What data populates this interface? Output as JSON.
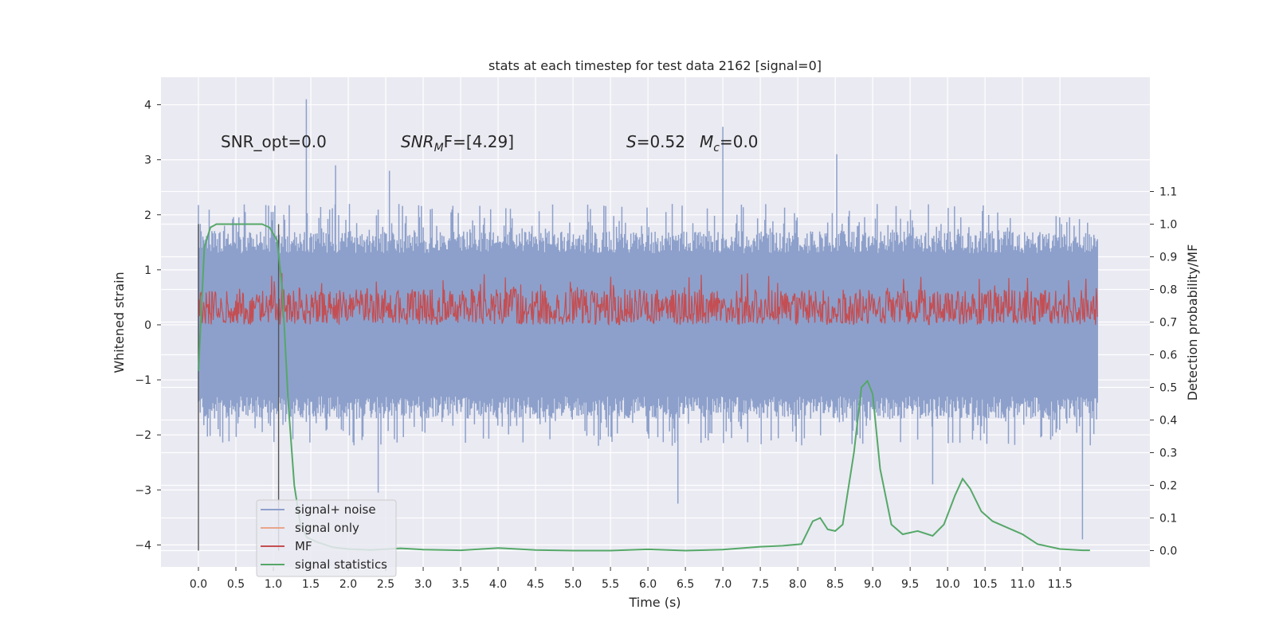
{
  "chart_data": {
    "type": "line",
    "title": "stats at each timestep for test data 2162 [signal=0]",
    "xlabel": "Time (s)",
    "ylabel": "Whitened strain",
    "y2label": "Detection probability/MF",
    "xlim": [
      -0.5,
      12.7
    ],
    "ylim": [
      -4.4,
      4.5
    ],
    "y2lim": [
      -0.05,
      1.45
    ],
    "x_ticks": [
      0.0,
      0.5,
      1.0,
      1.5,
      2.0,
      2.5,
      3.0,
      3.5,
      4.0,
      4.5,
      5.0,
      5.5,
      6.0,
      6.5,
      7.0,
      7.5,
      8.0,
      8.5,
      9.0,
      9.5,
      10.0,
      10.5,
      11.0,
      11.5
    ],
    "x_tick_labels": [
      "0.0",
      "0.5",
      "1.0",
      "1.5",
      "2.0",
      "2.5",
      "3.0",
      "3.5",
      "4.0",
      "4.5",
      "5.0",
      "5.5",
      "6.0",
      "6.5",
      "7.0",
      "7.5",
      "8.0",
      "8.5",
      "9.0",
      "9.5",
      "10.0",
      "10.5",
      "11.0",
      "11.5"
    ],
    "y_ticks": [
      -4,
      -3,
      -2,
      -1,
      0,
      1,
      2,
      3,
      4
    ],
    "y_tick_labels": [
      "−4",
      "−3",
      "−2",
      "−1",
      "0",
      "1",
      "2",
      "3",
      "4"
    ],
    "y2_ticks": [
      0.0,
      0.1,
      0.2,
      0.3,
      0.4,
      0.5,
      0.6,
      0.7,
      0.8,
      0.9,
      1.0,
      1.1
    ],
    "y2_tick_labels": [
      "0.0",
      "0.1",
      "0.2",
      "0.3",
      "0.4",
      "0.5",
      "0.6",
      "0.7",
      "0.8",
      "0.9",
      "1.0",
      "1.1"
    ],
    "grid": true,
    "legend_position": "bottom-left",
    "annotations": {
      "snr_opt": "SNR_opt=0.0",
      "snr_mf_prefix": "SNR",
      "snr_mf_sub": "M",
      "snr_mf_suffix": "F=[4.29]",
      "s_italic": "S",
      "s_value": "=0.52",
      "mc_italic": "M",
      "mc_sub": "c",
      "mc_value": "=0.0"
    },
    "vertical_markers": [
      0.0,
      1.07
    ],
    "series": [
      {
        "name": "signal+ noise",
        "color": "#8da0cb",
        "axis": "left",
        "x_range": [
          0.0,
          12.0
        ],
        "typical_band": [
          -1.3,
          1.3
        ],
        "typical_peaks": [
          2.2,
          -2.2
        ],
        "spikes": [
          {
            "x": 1.44,
            "y": 4.1
          },
          {
            "x": 7.0,
            "y": 3.6
          },
          {
            "x": 8.52,
            "y": 3.1
          },
          {
            "x": 11.8,
            "y": -3.9
          },
          {
            "x": 6.4,
            "y": -3.25
          },
          {
            "x": 2.4,
            "y": -3.05
          },
          {
            "x": 1.83,
            "y": 2.9
          },
          {
            "x": 2.55,
            "y": 2.8
          },
          {
            "x": 9.8,
            "y": -2.9
          }
        ]
      },
      {
        "name": "signal only",
        "color": "#e8a58a",
        "axis": "left",
        "x": [
          0.0,
          12.0
        ],
        "y": [
          0.0,
          0.0
        ]
      },
      {
        "name": "MF",
        "color": "#c44e52",
        "axis": "left",
        "x_range": [
          0.0,
          12.0
        ],
        "typical_band": [
          0.0,
          0.65
        ],
        "typical_peaks": [
          0.0,
          0.95
        ]
      },
      {
        "name": "signal statistics",
        "color": "#55a868",
        "axis": "right",
        "x": [
          0.0,
          0.08,
          0.16,
          0.24,
          0.35,
          0.5,
          0.7,
          0.85,
          0.95,
          1.05,
          1.12,
          1.2,
          1.28,
          1.36,
          1.45,
          1.6,
          1.8,
          2.0,
          2.3,
          2.7,
          3.0,
          3.5,
          4.0,
          4.5,
          5.0,
          5.5,
          6.0,
          6.5,
          7.0,
          7.5,
          7.8,
          8.05,
          8.2,
          8.3,
          8.4,
          8.5,
          8.6,
          8.75,
          8.85,
          8.93,
          9.0,
          9.1,
          9.25,
          9.4,
          9.6,
          9.8,
          9.95,
          10.1,
          10.2,
          10.3,
          10.45,
          10.6,
          10.8,
          11.0,
          11.2,
          11.5,
          11.8,
          11.9
        ],
        "y": [
          0.55,
          0.93,
          0.99,
          1.0,
          1.0,
          1.0,
          1.0,
          1.0,
          0.99,
          0.95,
          0.8,
          0.45,
          0.2,
          0.08,
          0.04,
          0.025,
          0.01,
          0.005,
          0.002,
          0.007,
          0.003,
          0.001,
          0.008,
          0.002,
          0.0,
          0.0,
          0.004,
          0.0,
          0.003,
          0.012,
          0.015,
          0.02,
          0.09,
          0.1,
          0.065,
          0.06,
          0.08,
          0.3,
          0.5,
          0.52,
          0.48,
          0.25,
          0.08,
          0.05,
          0.06,
          0.045,
          0.08,
          0.17,
          0.22,
          0.19,
          0.12,
          0.09,
          0.07,
          0.05,
          0.02,
          0.005,
          0.001,
          0.001
        ]
      }
    ]
  }
}
